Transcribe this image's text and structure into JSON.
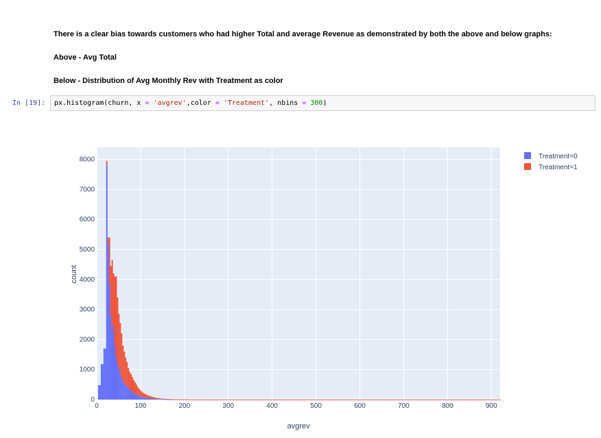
{
  "markdown": {
    "line1": "There is a clear bias towards customers who had higher Total and average Revenue as demonstrated by both the above and below graphs:",
    "line2": "Above - Avg Total",
    "line3": "Below - Distribution of Avg Monthly Rev with Treatment as color"
  },
  "cell": {
    "prompt": "In [19]:",
    "code": {
      "t1": "px.histogram(churn, x ",
      "op1": "=",
      "t2": " ",
      "s1": "'avgrev'",
      "t3": ",color ",
      "op2": "=",
      "t4": " ",
      "s2": "'Treatment'",
      "t5": ", nbins ",
      "op3": "=",
      "t6": " ",
      "n1": "300",
      "t7": ")"
    }
  },
  "colors": {
    "treatment0": "#636efa",
    "treatment1": "#ef553b",
    "plot_bg": "#e5ecf6",
    "grid": "#ffffff"
  },
  "chart_data": {
    "type": "bar",
    "barmode": "stack",
    "xlabel": "avgrev",
    "ylabel": "count",
    "xlim": [
      0,
      920
    ],
    "ylim": [
      0,
      8400
    ],
    "xticks": [
      0,
      100,
      200,
      300,
      400,
      500,
      600,
      700,
      800,
      900
    ],
    "yticks": [
      0,
      1000,
      2000,
      3000,
      4000,
      5000,
      6000,
      7000,
      8000
    ],
    "bin_width": 3.07,
    "legend": {
      "position": "top-right",
      "entries": [
        "Treatment=0",
        "Treatment=1"
      ]
    },
    "bin_starts": [
      0,
      3.07,
      6.14,
      9.21,
      12.28,
      15.35,
      18.42,
      21.49,
      24.56,
      27.63,
      30.7,
      33.77,
      36.84,
      39.91,
      42.98,
      46.05,
      49.12,
      52.19,
      55.26,
      58.33,
      61.4,
      64.47,
      67.54,
      70.61,
      73.68,
      76.75,
      79.82,
      82.89,
      85.96,
      89.03,
      92.1,
      95.17,
      98.24,
      101.31,
      104.38,
      107.45,
      110.52,
      113.59,
      116.66,
      119.73,
      122.8,
      125.87,
      128.94,
      132.01,
      135.08,
      138.15,
      141.22,
      144.29,
      147.36,
      150.43,
      153.5,
      156.57,
      159.64,
      162.71,
      165.78,
      168.85,
      171.92,
      174.99,
      178.06,
      181.13,
      184.2,
      187.27,
      190.34,
      193.41,
      196.48,
      199.55,
      202.62,
      205.69,
      208.76,
      211.83,
      214.9,
      217.97,
      221.04,
      224.11,
      227.18,
      230.25,
      233.32,
      236.39,
      239.46,
      242.53,
      245.6,
      248.67,
      251.74,
      254.81,
      257.88,
      260.95,
      264.02,
      267.09,
      270.16,
      273.23,
      276.3,
      279.37,
      282.44,
      285.51,
      288.58,
      291.65,
      294.72,
      297.79,
      300.86,
      303.93,
      307,
      310.07,
      313.14,
      316.21,
      319.28,
      322.35,
      325.42,
      328.49,
      331.56,
      334.63,
      337.7,
      340.77,
      343.84,
      346.91,
      349.98,
      353.05,
      356.12,
      359.19,
      362.26,
      365.33,
      368.4,
      371.47,
      374.54,
      377.61,
      380.68,
      383.75,
      386.82,
      389.89,
      392.96,
      396.03,
      399.1,
      402.17,
      405.24,
      408.31,
      411.38,
      414.45,
      417.52,
      420.59,
      423.66,
      426.73,
      429.8,
      432.87,
      435.94,
      439.01,
      442.08,
      445.15,
      448.22,
      451.29,
      454.36,
      457.43,
      460.5,
      463.57,
      466.64,
      469.71,
      472.78,
      475.85,
      478.92,
      481.99,
      485.06,
      488.13,
      491.2,
      494.27,
      497.34,
      500.41,
      503.48,
      506.55,
      509.62,
      512.69,
      515.76,
      518.83,
      521.9,
      524.97,
      528.04,
      531.11,
      534.18,
      537.25,
      540.32,
      543.39,
      546.46,
      549.53,
      552.6,
      555.67,
      558.74,
      561.81,
      564.88,
      567.95,
      571.02,
      574.09,
      577.16,
      580.23,
      583.3,
      586.37,
      589.44,
      592.51,
      595.58,
      598.65,
      601.72,
      604.79,
      607.86,
      610.93,
      614,
      617.07,
      620.14,
      623.21,
      626.28,
      629.35,
      632.42,
      635.49,
      638.56,
      641.63,
      644.7,
      647.77,
      650.84,
      653.91,
      656.98,
      660.05,
      663.12,
      666.19,
      669.26,
      672.33,
      675.4,
      678.47,
      681.54,
      684.61,
      687.68,
      690.75,
      693.82,
      696.89,
      699.96,
      703.03,
      706.1,
      709.17,
      712.24,
      715.31,
      718.38,
      721.45,
      724.52,
      727.59,
      730.66,
      733.73,
      736.8,
      739.87,
      742.94,
      746.01,
      749.08,
      752.15,
      755.22,
      758.29,
      761.36,
      764.43,
      767.5,
      770.57,
      773.64,
      776.71,
      779.78,
      782.85,
      785.92,
      788.99,
      792.06,
      795.13,
      798.2,
      801.27,
      804.34,
      807.41,
      810.48,
      813.55,
      816.62,
      819.69,
      822.76,
      825.83,
      828.9,
      831.97,
      835.04,
      838.11,
      841.18,
      844.25,
      847.32,
      850.39,
      853.46,
      856.53,
      859.6,
      862.67,
      865.74,
      868.81,
      871.88,
      874.95,
      878.02,
      881.09,
      884.16,
      887.23,
      890.3,
      893.37,
      896.44,
      899.51,
      902.58,
      905.65,
      908.72,
      911.79,
      914.86,
      917.93
    ],
    "series": [
      {
        "name": "Treatment=0",
        "values": [
          0,
          480,
          480,
          1180,
          1180,
          1700,
          1700,
          7800,
          5200,
          3850,
          2800,
          2300,
          2500,
          1800,
          1400,
          1200,
          1050,
          850,
          750,
          600,
          550,
          500,
          450,
          400,
          330,
          300,
          270,
          220,
          200,
          180,
          150,
          130,
          110,
          95,
          85,
          75,
          65,
          58,
          52,
          46,
          40,
          34,
          29,
          25,
          22,
          19,
          16,
          14,
          12,
          10,
          9,
          8,
          7,
          6,
          5,
          5,
          4,
          4,
          3,
          3,
          3,
          2,
          2,
          2,
          2,
          2,
          2,
          2,
          1,
          1,
          1,
          1,
          1,
          1,
          1,
          1,
          1,
          1,
          1,
          1,
          1,
          1,
          1,
          1,
          1,
          1,
          1,
          1,
          1,
          1,
          1,
          1,
          1,
          1,
          1,
          1,
          1,
          1,
          1,
          1,
          1,
          1,
          1,
          1,
          1,
          1,
          1,
          1,
          1,
          1,
          1,
          1,
          1,
          1,
          1,
          1,
          1,
          1,
          1,
          1,
          1,
          1,
          1,
          1,
          1,
          1,
          1,
          1,
          1,
          1,
          1,
          1,
          1,
          1,
          1,
          1,
          1,
          1,
          1,
          1,
          1,
          1,
          1,
          1,
          1,
          1,
          1,
          1,
          1,
          1,
          1,
          1,
          1,
          1,
          1,
          1,
          1,
          1,
          1,
          1,
          1,
          1,
          1,
          1,
          1,
          1,
          1,
          1,
          1,
          1,
          1,
          1,
          1,
          1,
          1,
          1,
          1,
          1,
          1,
          1,
          1,
          1,
          1,
          1,
          1,
          1,
          1,
          1,
          1,
          1,
          1,
          1,
          1,
          1,
          1,
          1,
          1,
          1,
          1,
          1,
          1,
          1,
          1,
          1,
          1,
          1,
          1,
          1,
          1,
          1,
          1,
          1,
          1,
          1,
          1,
          1,
          1,
          1,
          1,
          1,
          1,
          1,
          1,
          1,
          1,
          1,
          1,
          1,
          1,
          1,
          1,
          1,
          1,
          1,
          1,
          1,
          1,
          1,
          1,
          1,
          1,
          1,
          1,
          1,
          1,
          1,
          1,
          1,
          1,
          1,
          1,
          1,
          1,
          1,
          1,
          1,
          1,
          1,
          1,
          1,
          1,
          1,
          1,
          1,
          1,
          1,
          1,
          1,
          1,
          1,
          1,
          1,
          1,
          1,
          1,
          1,
          1,
          1,
          1,
          1,
          1,
          1,
          1,
          1,
          1,
          1,
          1,
          1,
          1,
          1,
          1,
          1,
          1,
          1,
          1,
          1,
          1,
          1,
          1,
          1,
          1,
          1,
          1,
          1,
          1,
          1,
          1,
          1,
          1,
          1,
          1,
          1,
          1
        ]
      },
      {
        "name": "Treatment=1",
        "values": [
          0,
          0,
          0,
          0,
          0,
          0,
          0,
          150,
          200,
          1550,
          1650,
          2350,
          1700,
          2300,
          2700,
          2200,
          1800,
          1700,
          1450,
          1200,
          1050,
          900,
          800,
          650,
          600,
          550,
          480,
          430,
          380,
          320,
          270,
          230,
          200,
          170,
          145,
          125,
          110,
          95,
          85,
          72,
          63,
          55,
          48,
          42,
          37,
          33,
          29,
          26,
          23,
          20,
          18,
          16,
          14,
          12,
          11,
          10,
          9,
          8,
          7,
          6,
          6,
          5,
          5,
          4,
          4,
          4,
          3,
          3,
          3,
          3,
          2,
          2,
          2,
          2,
          2,
          2,
          2,
          2,
          2,
          2,
          1,
          1,
          1,
          1,
          1,
          1,
          1,
          1,
          1,
          1,
          1,
          1,
          1,
          1,
          1,
          1,
          1,
          1,
          1,
          1,
          1,
          1,
          1,
          1,
          1,
          1,
          1,
          1,
          1,
          1,
          1,
          1,
          1,
          1,
          1,
          1,
          1,
          1,
          1,
          1,
          1,
          1,
          1,
          1,
          1,
          1,
          1,
          1,
          1,
          1,
          1,
          1,
          1,
          1,
          1,
          1,
          1,
          1,
          1,
          1,
          1,
          1,
          1,
          1,
          1,
          1,
          1,
          1,
          1,
          1,
          1,
          1,
          1,
          1,
          1,
          1,
          1,
          1,
          1,
          1,
          1,
          1,
          1,
          1,
          1,
          1,
          1,
          1,
          1,
          1,
          1,
          1,
          1,
          1,
          1,
          1,
          1,
          1,
          1,
          1,
          1,
          1,
          1,
          1,
          1,
          1,
          1,
          1,
          1,
          1,
          1,
          1,
          1,
          1,
          1,
          1,
          1,
          1,
          1,
          1,
          1,
          1,
          1,
          1,
          1,
          1,
          1,
          1,
          1,
          1,
          1,
          1,
          1,
          1,
          1,
          1,
          1,
          1,
          1,
          1,
          1,
          1,
          1,
          1,
          1,
          1,
          1,
          1,
          1,
          1,
          1,
          1,
          1,
          1,
          1,
          1,
          1,
          1,
          1,
          1,
          1,
          1,
          1,
          1,
          1,
          1,
          1,
          1,
          1,
          1,
          1,
          1,
          1,
          1,
          1,
          1,
          1,
          1,
          1,
          1,
          1,
          1,
          1,
          1,
          1,
          1,
          1,
          1,
          1,
          1,
          1,
          1,
          1,
          1,
          1,
          1,
          1,
          1,
          1,
          1,
          1,
          1,
          1,
          1,
          1,
          1,
          1,
          1,
          1,
          1,
          1,
          1,
          1,
          1,
          1,
          1,
          1,
          1,
          1,
          1,
          1,
          1,
          1,
          1,
          1,
          1,
          1,
          1,
          1,
          1,
          1,
          1,
          1,
          1,
          1,
          1,
          1,
          1
        ]
      }
    ]
  }
}
